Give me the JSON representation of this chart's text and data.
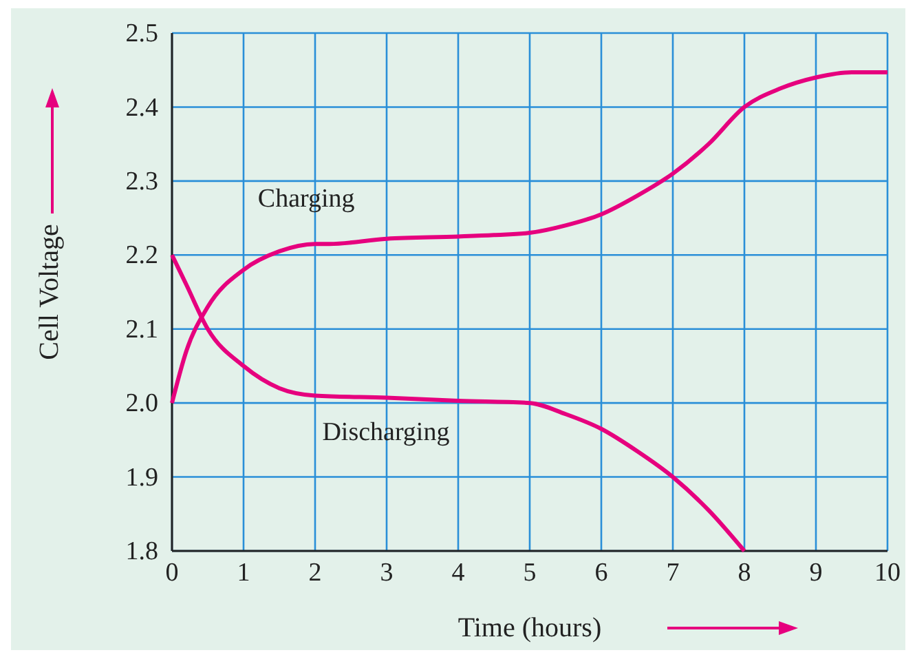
{
  "chart_data": {
    "type": "line",
    "xlabel": "Time (hours)",
    "ylabel": "Cell Voltage",
    "xlim": [
      0,
      10
    ],
    "xticks": [
      0,
      1,
      2,
      3,
      4,
      5,
      6,
      7,
      8,
      9,
      10
    ],
    "ylim": [
      1.8,
      2.5
    ],
    "yticks": [
      1.8,
      1.9,
      {
        "value": 2,
        "label": "2.0"
      },
      2.1,
      2.2,
      2.3,
      2.4,
      2.5
    ],
    "grid": true,
    "legend": false,
    "marker": "none",
    "line_style": "solid",
    "series": [
      {
        "name": "Charging",
        "color": "#e6007e",
        "x": [
          0,
          0.2,
          0.5,
          1,
          1.5,
          2,
          2.2,
          3,
          4,
          4.5,
          5,
          5.5,
          6,
          6.5,
          7,
          7.5,
          8,
          8.5,
          9,
          9.5,
          10
        ],
        "values": [
          2.0,
          2.07,
          2.13,
          2.18,
          2.205,
          2.215,
          2.215,
          2.222,
          2.225,
          2.227,
          2.23,
          2.24,
          2.255,
          2.28,
          2.31,
          2.35,
          2.4,
          2.425,
          2.44,
          2.447,
          2.447
        ]
      },
      {
        "name": "Discharging",
        "color": "#e6007e",
        "x": [
          0,
          0.2,
          0.5,
          1,
          1.5,
          2,
          3,
          4,
          5,
          5.5,
          6,
          6.5,
          7,
          7.5,
          8
        ],
        "values": [
          2.2,
          2.16,
          2.1,
          2.05,
          2.02,
          2.01,
          2.007,
          2.003,
          2.0,
          1.985,
          1.965,
          1.935,
          1.9,
          1.855,
          1.8
        ]
      }
    ]
  }
}
